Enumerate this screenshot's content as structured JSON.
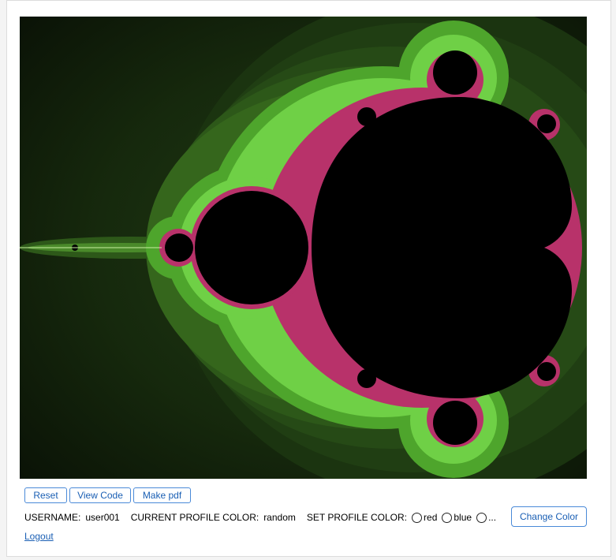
{
  "toolbar": {
    "reset_label": "Reset",
    "view_code_label": "View Code",
    "make_pdf_label": "Make pdf"
  },
  "profile": {
    "username_label": "USERNAME:",
    "username_value": "user001",
    "current_color_label": "CURRENT PROFILE COLOR:",
    "current_color_value": "random",
    "set_color_label": "SET PROFILE COLOR:",
    "color_options": [
      "red",
      "blue",
      "..."
    ],
    "change_color_label": "Change Color"
  },
  "logout_label": "Logout",
  "colors": {
    "button_border": "#4a8ad8",
    "button_text": "#1a5fb4",
    "fractal_green": "#5fc13a",
    "fractal_dark": "#0e1a09",
    "fractal_edge": "#c03060"
  }
}
